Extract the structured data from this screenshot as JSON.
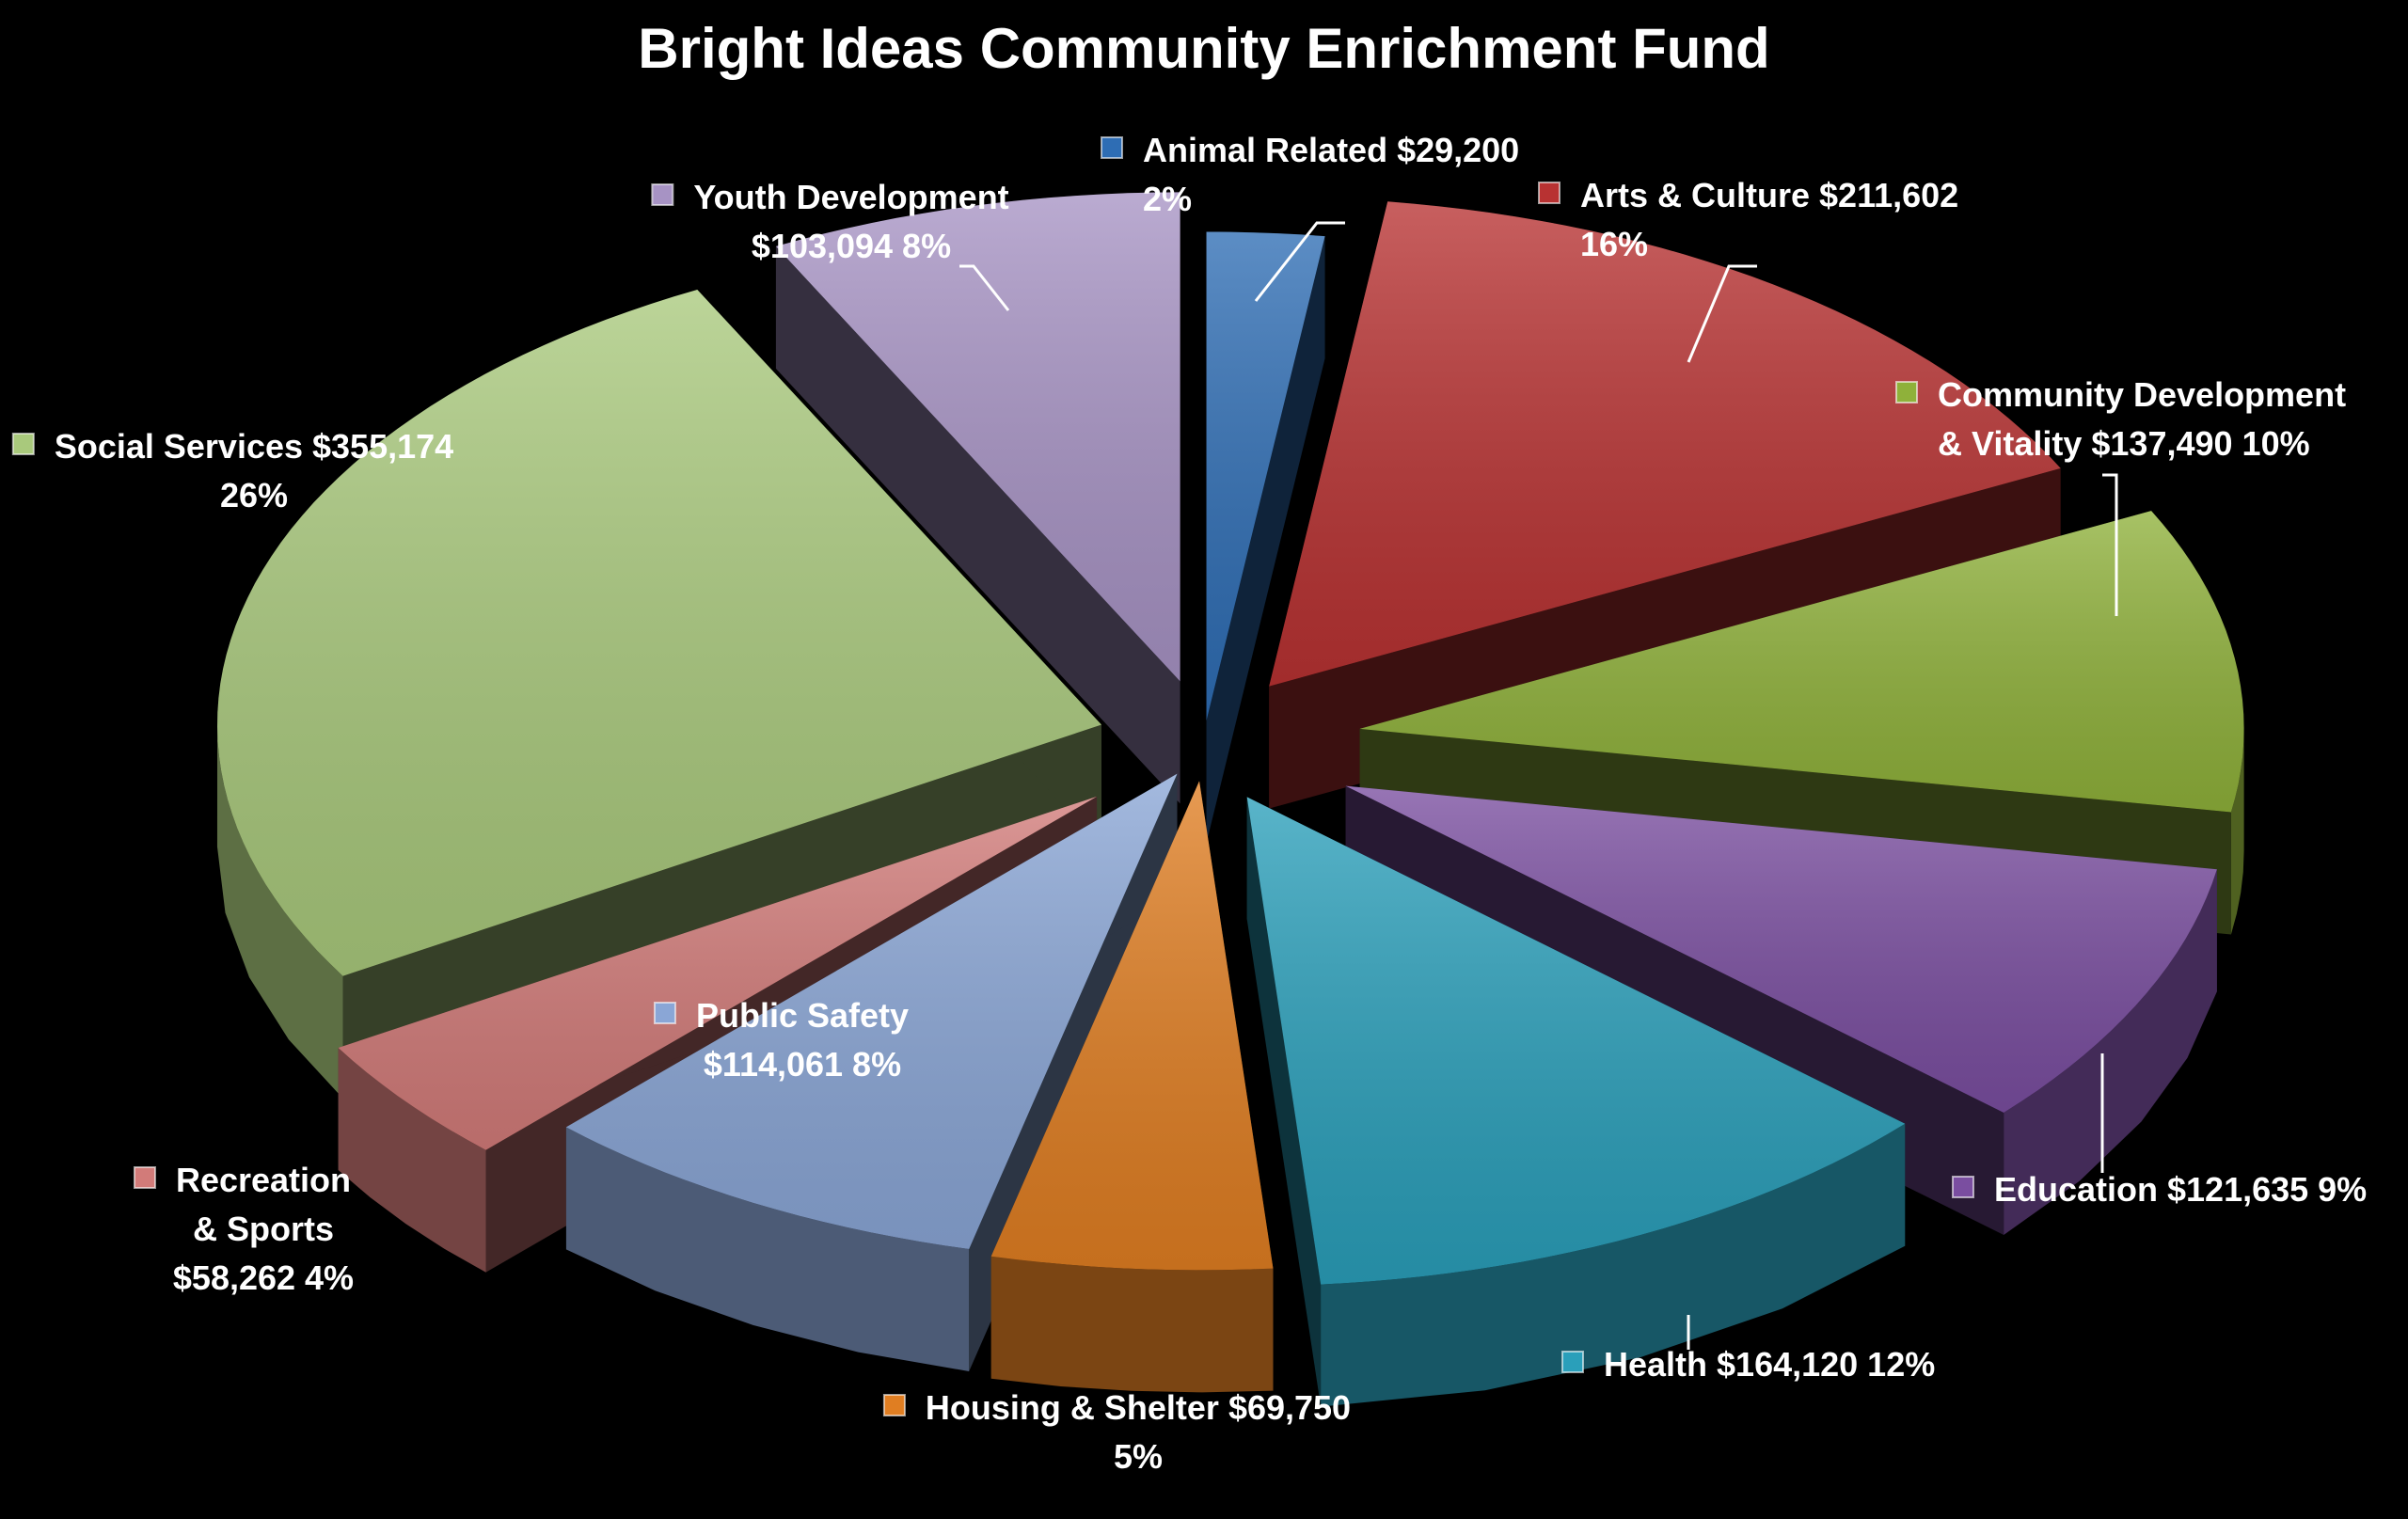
{
  "chart_data": {
    "type": "pie",
    "style": "3d-exploded",
    "title": "Bright Ideas Community Enrichment Fund",
    "slices": [
      {
        "name": "Animal Related",
        "amount": "$29,200",
        "value": 29200,
        "percent": "2%",
        "color": "#2e6db4",
        "label_lines": [
          "Animal Related  $29,200",
          "2%"
        ]
      },
      {
        "name": "Arts & Culture",
        "amount": "$211,602",
        "value": 211602,
        "percent": "16%",
        "color": "#b83232",
        "label_lines": [
          "Arts & Culture  $211,602",
          "16%"
        ]
      },
      {
        "name": "Community Development & Vitality",
        "amount": "$137,490",
        "value": 137490,
        "percent": "10%",
        "color": "#8fb13a",
        "label_lines": [
          "Community Development",
          "& Vitality  $137,490  10%"
        ]
      },
      {
        "name": "Education",
        "amount": "$121,635",
        "value": 121635,
        "percent": "9%",
        "color": "#7a4ea0",
        "label_lines": [
          "Education $121,635  9%"
        ]
      },
      {
        "name": "Health",
        "amount": "$164,120",
        "value": 164120,
        "percent": "12%",
        "color": "#2a9fba",
        "label_lines": [
          "Health  $164,120  12%"
        ]
      },
      {
        "name": "Housing & Shelter",
        "amount": "$69,750",
        "value": 69750,
        "percent": "5%",
        "color": "#e07e22",
        "label_lines": [
          "Housing & Shelter  $69,750",
          "5%"
        ]
      },
      {
        "name": "Public Safety",
        "amount": "$114,061",
        "value": 114061,
        "percent": "8%",
        "color": "#8aa6d6",
        "label_lines": [
          "Public Safety",
          "$114,061  8%"
        ]
      },
      {
        "name": "Recreation & Sports",
        "amount": "$58,262",
        "value": 58262,
        "percent": "4%",
        "color": "#d27b79",
        "label_lines": [
          "Recreation",
          "& Sports",
          "$58,262  4%"
        ]
      },
      {
        "name": "Social Services",
        "amount": "$355,174",
        "value": 355174,
        "percent": "26%",
        "color": "#a9c97c",
        "label_lines": [
          "Social Services  $355,174",
          "26%"
        ]
      },
      {
        "name": "Youth Development",
        "amount": "$103,094",
        "value": 103094,
        "percent": "8%",
        "color": "#a793c4",
        "label_lines": [
          "Youth Development",
          "$103,094  8%"
        ]
      }
    ]
  }
}
